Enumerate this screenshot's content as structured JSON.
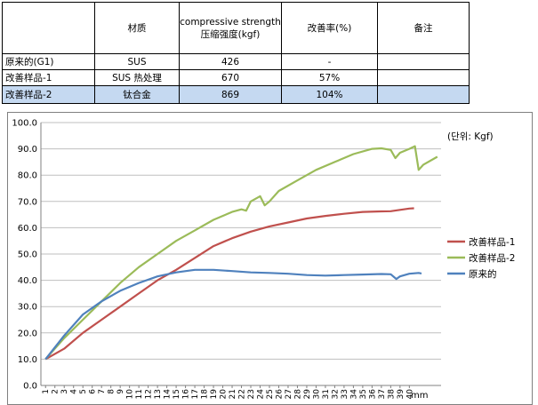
{
  "table": {
    "headers": [
      "",
      "材质",
      "compressive strength压缩强度(kgf)",
      "改善率(%)",
      "备注"
    ],
    "rows": [
      {
        "cells": [
          "原来的(G1)",
          "SUS",
          "426",
          "-",
          ""
        ],
        "highlight": false
      },
      {
        "cells": [
          "改善样品-1",
          "SUS 热处理",
          "670",
          "57%",
          ""
        ],
        "highlight": false
      },
      {
        "cells": [
          "改善样品-2",
          "钛合金",
          "869",
          "104%",
          ""
        ],
        "highlight": true
      }
    ]
  },
  "chart_data": {
    "type": "line",
    "unit_label": "(단위: Kgf)",
    "xlabel": "mm",
    "ylim": [
      0,
      100
    ],
    "yticks": [
      "0.0",
      "10.0",
      "20.0",
      "30.0",
      "40.0",
      "50.0",
      "60.0",
      "70.0",
      "80.0",
      "90.0",
      "100.0"
    ],
    "xticks": [
      "1",
      "2",
      "3",
      "4",
      "5",
      "6",
      "7",
      "8",
      "9",
      "10",
      "11",
      "12",
      "13",
      "14",
      "15",
      "16",
      "17",
      "18",
      "19",
      "20",
      "21",
      "22",
      "23",
      "24",
      "25",
      "26",
      "27",
      "28",
      "29",
      "30",
      "31",
      "32",
      "33",
      "34",
      "35",
      "36",
      "37",
      "38",
      "39",
      "40"
    ],
    "grid": true,
    "legend_position": "right",
    "series": [
      {
        "name": "改善样品-1",
        "color": "#c0504d",
        "points": [
          [
            1,
            10
          ],
          [
            3,
            14
          ],
          [
            5,
            20
          ],
          [
            7,
            25
          ],
          [
            9,
            30
          ],
          [
            11,
            35
          ],
          [
            13,
            40
          ],
          [
            15,
            44
          ],
          [
            17,
            48.5
          ],
          [
            19,
            53
          ],
          [
            21,
            56
          ],
          [
            23,
            58.5
          ],
          [
            25,
            60.5
          ],
          [
            27,
            62
          ],
          [
            29,
            63.5
          ],
          [
            31,
            64.5
          ],
          [
            33,
            65.3
          ],
          [
            35,
            66
          ],
          [
            37,
            66.2
          ],
          [
            38,
            66.3
          ],
          [
            39,
            66.8
          ],
          [
            40,
            67.3
          ],
          [
            40.5,
            67.4
          ]
        ]
      },
      {
        "name": "改善样品-2",
        "color": "#9bbb59",
        "points": [
          [
            1,
            10
          ],
          [
            3,
            18
          ],
          [
            5,
            25
          ],
          [
            7,
            32
          ],
          [
            9,
            39
          ],
          [
            11,
            45
          ],
          [
            13,
            50
          ],
          [
            15,
            55
          ],
          [
            17,
            59
          ],
          [
            19,
            63
          ],
          [
            21,
            66
          ],
          [
            22,
            67
          ],
          [
            22.5,
            66.5
          ],
          [
            23,
            70
          ],
          [
            24,
            72
          ],
          [
            24.5,
            68.5
          ],
          [
            25,
            70
          ],
          [
            26,
            74
          ],
          [
            28,
            78
          ],
          [
            30,
            82
          ],
          [
            32,
            85
          ],
          [
            34,
            88
          ],
          [
            36,
            90
          ],
          [
            37,
            90.2
          ],
          [
            38,
            89.6
          ],
          [
            38.5,
            86.5
          ],
          [
            39,
            88.5
          ],
          [
            40,
            90
          ],
          [
            40.6,
            91
          ],
          [
            41,
            82
          ],
          [
            41.5,
            84
          ],
          [
            43,
            87
          ]
        ]
      },
      {
        "name": "原来的",
        "color": "#4f81bd",
        "points": [
          [
            1,
            10
          ],
          [
            3,
            19
          ],
          [
            5,
            27
          ],
          [
            7,
            32
          ],
          [
            9,
            36
          ],
          [
            11,
            39
          ],
          [
            13,
            41.5
          ],
          [
            15,
            43
          ],
          [
            17,
            44
          ],
          [
            19,
            44
          ],
          [
            21,
            43.5
          ],
          [
            23,
            43
          ],
          [
            25,
            42.8
          ],
          [
            27,
            42.5
          ],
          [
            29,
            42
          ],
          [
            31,
            41.8
          ],
          [
            33,
            42
          ],
          [
            35,
            42.2
          ],
          [
            37,
            42.4
          ],
          [
            38,
            42.3
          ],
          [
            38.6,
            40.5
          ],
          [
            39,
            41.5
          ],
          [
            40,
            42.5
          ],
          [
            41,
            42.8
          ],
          [
            41.3,
            42.6
          ]
        ]
      }
    ]
  }
}
